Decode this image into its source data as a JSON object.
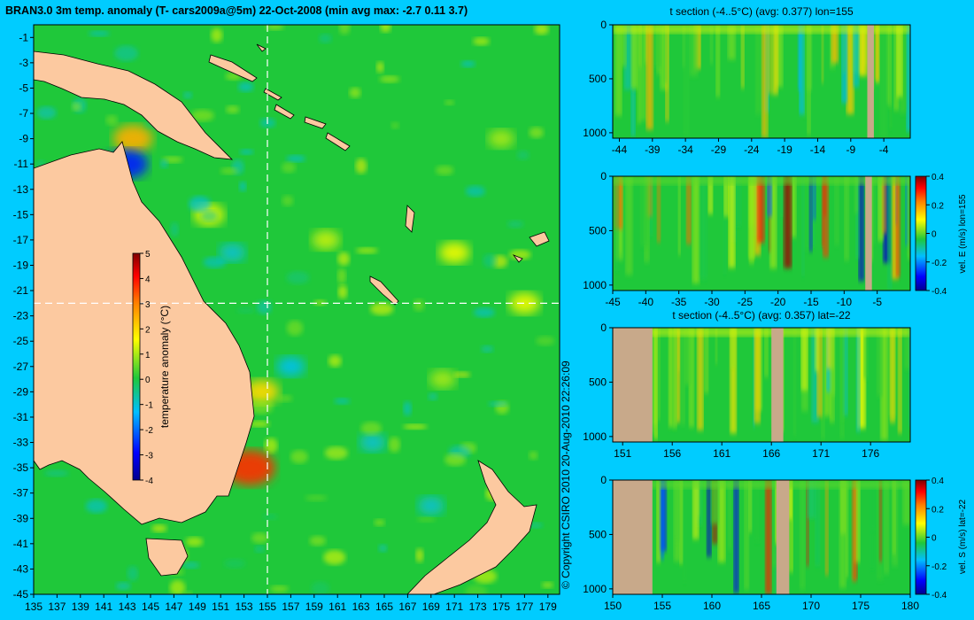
{
  "title": "BRAN3.0 3m temp. anomaly (T- cars2009a@5m) 22-Oct-2008 (min avg max: -2.7 0.11 3.7)",
  "copyright": "© Copyright CSIRO 2010   20-Aug-2010 22:26:09",
  "colors": {
    "background": "#00ccff",
    "land": "#fcc9a0",
    "ocean": "#1fc83a",
    "section_land": "#c8a98a",
    "crosshair": "#ffffff"
  },
  "chart_data": [
    {
      "type": "heatmap",
      "name": "map",
      "xlabel": "",
      "ylabel": "",
      "xlim": [
        135,
        180
      ],
      "ylim": [
        -45,
        0
      ],
      "x_ticks": [
        "135",
        "137",
        "139",
        "141",
        "143",
        "145",
        "147",
        "149",
        "151",
        "153",
        "155",
        "157",
        "159",
        "161",
        "163",
        "165",
        "167",
        "169",
        "171",
        "173",
        "175",
        "177",
        "179"
      ],
      "y_ticks": [
        "-1",
        "-3",
        "-5",
        "-7",
        "-9",
        "-11",
        "-13",
        "-15",
        "-17",
        "-19",
        "-21",
        "-23",
        "-25",
        "-27",
        "-29",
        "-31",
        "-33",
        "-35",
        "-37",
        "-39",
        "-41",
        "-43",
        "-45"
      ],
      "crosshair": {
        "lon": 155,
        "lat": -22
      },
      "colorbar": {
        "label": "temperature anomaly (°C)",
        "range": [
          -4,
          5
        ],
        "ticks": [
          "5",
          "4",
          "3",
          "2",
          "1",
          "0",
          "-1",
          "-2",
          "-3",
          "-4"
        ]
      },
      "hotspots": [
        {
          "lon": 153.5,
          "lat": -35,
          "value": 3.7
        },
        {
          "lon": 154.5,
          "lat": -29,
          "value": 2.0
        },
        {
          "lon": 143.5,
          "lat": -9,
          "value": 2.5
        },
        {
          "lon": 150,
          "lat": -15,
          "value": 1.5
        },
        {
          "lon": 160,
          "lat": -17,
          "value": 1.2
        },
        {
          "lon": 171,
          "lat": -18,
          "value": 1.5
        },
        {
          "lon": 177,
          "lat": -22,
          "value": 1.5
        },
        {
          "lon": 170,
          "lat": -28,
          "value": 1.0
        },
        {
          "lon": 175,
          "lat": -9,
          "value": 1.0
        }
      ],
      "coldspots": [
        {
          "lon": 143,
          "lat": -11,
          "value": -2.7
        },
        {
          "lon": 157,
          "lat": -27,
          "value": -1.2
        },
        {
          "lon": 164,
          "lat": -33,
          "value": -1.0
        },
        {
          "lon": 152,
          "lat": -18,
          "value": -1.0
        },
        {
          "lon": 169,
          "lat": -38,
          "value": -1.0
        }
      ]
    },
    {
      "type": "heatmap",
      "name": "t-section-lon155",
      "title": "t section (-4..5°C) (avg: 0.377) lon=155",
      "xlim": [
        -45,
        0
      ],
      "ylim": [
        1050,
        0
      ],
      "x_ticks": [
        "-44",
        "-39",
        "-34",
        "-29",
        "-24",
        "-19",
        "-14",
        "-9",
        "-4"
      ],
      "y_ticks": [
        "0",
        "500",
        "1000"
      ]
    },
    {
      "type": "heatmap",
      "name": "vel-E-lon155",
      "xlim": [
        -45,
        0
      ],
      "ylim": [
        1050,
        0
      ],
      "x_ticks": [
        "-45",
        "-40",
        "-35",
        "-30",
        "-25",
        "-20",
        "-15",
        "-10",
        "-5"
      ],
      "y_ticks": [
        "0",
        "500",
        "1000"
      ],
      "colorbar": {
        "label": "vel. E (m/s) lon=155",
        "range": [
          -0.4,
          0.4
        ],
        "ticks": [
          "0.4",
          "0.2",
          "0",
          "-0.2",
          "-0.4"
        ]
      }
    },
    {
      "type": "heatmap",
      "name": "t-section-lat-22",
      "title": "t section (-4..5°C) (avg: 0.357) lat=-22",
      "xlim": [
        150,
        180
      ],
      "ylim": [
        1050,
        0
      ],
      "x_ticks": [
        "151",
        "156",
        "161",
        "166",
        "171",
        "176"
      ],
      "y_ticks": [
        "0",
        "500",
        "1000"
      ]
    },
    {
      "type": "heatmap",
      "name": "vel-S-lat-22",
      "xlim": [
        150,
        180
      ],
      "ylim": [
        1050,
        0
      ],
      "x_ticks": [
        "150",
        "155",
        "160",
        "165",
        "170",
        "175",
        "180"
      ],
      "y_ticks": [
        "0",
        "500",
        "1000"
      ],
      "colorbar": {
        "label": "vel. S (m/s) lat=-22",
        "range": [
          -0.4,
          0.4
        ],
        "ticks": [
          "0.4",
          "0.2",
          "0",
          "-0.2",
          "-0.4"
        ]
      }
    }
  ]
}
